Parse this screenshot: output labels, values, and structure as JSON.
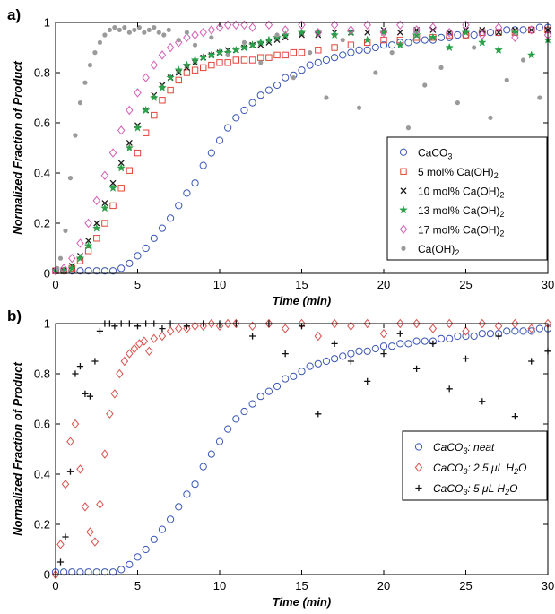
{
  "chart_data": [
    {
      "type": "scatter",
      "panel_label": "a)",
      "xlabel": "Time (min)",
      "ylabel": "Normalized Fraction of Product",
      "xlim": [
        0,
        30
      ],
      "ylim": [
        0,
        1
      ],
      "xticks": [
        "0",
        "5",
        "10",
        "15",
        "20",
        "25",
        "30"
      ],
      "yticks": [
        "0",
        "0.2",
        "0.4",
        "0.6",
        "0.8",
        "1"
      ],
      "grid": false,
      "legend_position": "right",
      "series": [
        {
          "name_parts": [
            "CaCO",
            "3"
          ],
          "marker": "circle-open",
          "color": "#3a55b4",
          "x": [
            0.0,
            0.5,
            1.0,
            1.5,
            2.0,
            2.5,
            3.0,
            3.5,
            4.0,
            4.5,
            5.0,
            5.5,
            6.0,
            6.5,
            7.0,
            7.5,
            8.0,
            8.5,
            9.0,
            9.5,
            10.0,
            10.5,
            11.0,
            11.5,
            12.0,
            12.5,
            13.0,
            13.5,
            14.0,
            14.5,
            15.0,
            15.5,
            16.0,
            16.5,
            17.0,
            17.5,
            18.0,
            18.5,
            19.0,
            19.5,
            20.0,
            20.5,
            21.0,
            21.5,
            22.0,
            22.5,
            23.0,
            23.5,
            24.0,
            24.5,
            25.0,
            25.5,
            26.0,
            26.5,
            27.0,
            27.5,
            28.0,
            28.5,
            29.0,
            29.5,
            30.0
          ],
          "y": [
            0.01,
            0.01,
            0.01,
            0.01,
            0.01,
            0.01,
            0.01,
            0.01,
            0.02,
            0.04,
            0.07,
            0.1,
            0.14,
            0.18,
            0.22,
            0.27,
            0.32,
            0.36,
            0.43,
            0.48,
            0.53,
            0.58,
            0.62,
            0.65,
            0.68,
            0.71,
            0.73,
            0.75,
            0.78,
            0.79,
            0.81,
            0.83,
            0.84,
            0.85,
            0.86,
            0.87,
            0.88,
            0.89,
            0.89,
            0.9,
            0.91,
            0.91,
            0.92,
            0.92,
            0.93,
            0.93,
            0.93,
            0.94,
            0.94,
            0.95,
            0.95,
            0.95,
            0.96,
            0.96,
            0.96,
            0.97,
            0.97,
            0.97,
            0.97,
            0.98,
            0.98
          ]
        },
        {
          "name_parts": [
            "5 mol% Ca(OH)",
            "2"
          ],
          "marker": "square-open",
          "color": "#e0453a",
          "x": [
            0.0,
            0.5,
            1.0,
            1.5,
            2.0,
            2.5,
            3.0,
            3.5,
            4.0,
            4.5,
            5.0,
            5.5,
            6.0,
            6.5,
            7.0,
            7.5,
            8.0,
            8.5,
            9.0,
            9.5,
            10.0,
            10.5,
            11.0,
            11.5,
            12.0,
            12.5,
            13.0,
            13.5,
            14.0,
            14.5,
            15.0,
            16.0,
            17.0,
            18.0,
            19.0,
            20.0,
            21.0,
            22.0,
            23.0,
            24.0,
            25.0,
            26.0,
            27.0,
            28.0,
            29.0,
            30.0
          ],
          "y": [
            0.01,
            0.01,
            0.02,
            0.05,
            0.09,
            0.14,
            0.2,
            0.27,
            0.34,
            0.41,
            0.48,
            0.56,
            0.63,
            0.69,
            0.73,
            0.77,
            0.8,
            0.81,
            0.82,
            0.83,
            0.84,
            0.84,
            0.85,
            0.85,
            0.85,
            0.86,
            0.86,
            0.87,
            0.87,
            0.88,
            0.88,
            0.89,
            0.9,
            0.91,
            0.92,
            0.93,
            0.93,
            0.94,
            0.94,
            0.95,
            0.95,
            0.96,
            0.96,
            0.96,
            0.97,
            0.97
          ]
        },
        {
          "name_parts": [
            "10 mol% Ca(OH)",
            "2"
          ],
          "marker": "x",
          "color": "#1a1a1a",
          "x": [
            0.0,
            0.5,
            1.0,
            1.5,
            2.0,
            2.5,
            3.0,
            3.5,
            4.0,
            4.5,
            5.0,
            5.5,
            6.0,
            6.5,
            7.0,
            7.5,
            8.0,
            8.5,
            9.0,
            9.5,
            10.0,
            10.5,
            11.0,
            11.5,
            12.0,
            12.5,
            13.0,
            13.5,
            14.0,
            15.0,
            16.0,
            17.0,
            18.0,
            19.0,
            20.0,
            21.0,
            22.0,
            23.0,
            24.0,
            25.0,
            26.0,
            27.0,
            28.0,
            29.0,
            30.0
          ],
          "y": [
            0.01,
            0.01,
            0.03,
            0.07,
            0.13,
            0.2,
            0.28,
            0.36,
            0.44,
            0.52,
            0.59,
            0.65,
            0.71,
            0.75,
            0.78,
            0.8,
            0.82,
            0.84,
            0.86,
            0.87,
            0.88,
            0.89,
            0.89,
            0.9,
            0.91,
            0.91,
            0.92,
            0.93,
            0.94,
            0.95,
            0.95,
            0.96,
            0.96,
            0.96,
            0.97,
            0.96,
            0.97,
            0.97,
            0.96,
            0.97,
            0.97,
            0.96,
            0.97,
            0.97,
            0.97
          ]
        },
        {
          "name_parts": [
            "13 mol% Ca(OH)",
            "2"
          ],
          "marker": "star",
          "color": "#2ca04a",
          "x": [
            0.0,
            0.5,
            1.0,
            1.5,
            2.0,
            2.5,
            3.0,
            3.5,
            4.0,
            4.5,
            5.0,
            5.5,
            6.0,
            6.5,
            7.0,
            7.5,
            8.0,
            8.5,
            9.0,
            9.5,
            10.0,
            10.5,
            11.0,
            11.5,
            12.0,
            12.5,
            13.0,
            13.5,
            14.0,
            15.0,
            16.0,
            17.0,
            18.0,
            19.0,
            20.0,
            21.0,
            22.0,
            23.0,
            24.0,
            25.0,
            26.0,
            27.0,
            28.0,
            29.0,
            30.0
          ],
          "y": [
            0.01,
            0.01,
            0.02,
            0.06,
            0.11,
            0.18,
            0.26,
            0.34,
            0.42,
            0.5,
            0.58,
            0.65,
            0.7,
            0.74,
            0.78,
            0.81,
            0.83,
            0.85,
            0.86,
            0.87,
            0.88,
            0.88,
            0.89,
            0.9,
            0.91,
            0.92,
            0.93,
            0.94,
            0.95,
            0.96,
            0.96,
            0.95,
            0.96,
            0.93,
            0.96,
            0.91,
            0.95,
            0.94,
            0.9,
            0.96,
            0.92,
            0.89,
            0.96,
            0.87,
            0.93
          ]
        },
        {
          "name_parts": [
            "17 mol% Ca(OH)",
            "2"
          ],
          "marker": "diamond-open",
          "color": "#d45fb4",
          "x": [
            0.0,
            0.5,
            1.0,
            1.5,
            2.0,
            2.5,
            3.0,
            3.5,
            4.0,
            4.5,
            5.0,
            5.5,
            6.0,
            6.5,
            7.0,
            7.5,
            8.0,
            8.5,
            9.0,
            9.5,
            10.0,
            10.5,
            11.0,
            11.5,
            12.0,
            13.0,
            14.0,
            15.0,
            16.0,
            17.0,
            18.0,
            19.0,
            20.0,
            21.0,
            22.0,
            23.0,
            24.0,
            25.0,
            26.0,
            27.0,
            28.0,
            29.0,
            30.0
          ],
          "y": [
            0.01,
            0.02,
            0.06,
            0.12,
            0.2,
            0.29,
            0.39,
            0.48,
            0.57,
            0.65,
            0.72,
            0.78,
            0.83,
            0.87,
            0.9,
            0.92,
            0.94,
            0.95,
            0.96,
            0.97,
            0.98,
            0.99,
            0.99,
            0.99,
            0.98,
            0.99,
            0.97,
            0.99,
            0.96,
            0.99,
            0.97,
            0.99,
            0.96,
            0.99,
            0.97,
            0.98,
            0.96,
            0.99,
            0.95,
            0.98,
            0.94,
            0.97,
            0.95
          ]
        },
        {
          "name_parts": [
            "Ca(OH)",
            "2"
          ],
          "marker": "dot",
          "color": "#9a9a9a",
          "x": [
            0.1,
            0.3,
            0.6,
            0.9,
            1.2,
            1.5,
            1.8,
            2.1,
            2.4,
            2.7,
            3.0,
            3.3,
            3.6,
            3.9,
            4.2,
            4.5,
            4.8,
            5.1,
            5.4,
            5.7,
            6.0,
            6.3,
            6.6,
            6.9,
            7.5,
            8.0,
            8.5,
            9.5,
            10.5,
            11.5,
            12.5,
            13.5,
            14.5,
            15.5,
            16.5,
            17.5,
            18.5,
            19.5,
            20.5,
            21.5,
            22.5,
            23.5,
            24.5,
            25.5,
            26.5,
            27.5,
            28.5,
            29.5
          ],
          "y": [
            0.02,
            0.06,
            0.17,
            0.38,
            0.55,
            0.68,
            0.76,
            0.83,
            0.88,
            0.92,
            0.95,
            0.97,
            0.98,
            0.97,
            0.98,
            0.96,
            0.97,
            0.98,
            0.96,
            0.97,
            0.98,
            0.96,
            0.95,
            0.97,
            0.93,
            0.96,
            0.91,
            0.94,
            0.87,
            0.92,
            0.84,
            0.95,
            0.78,
            0.88,
            0.7,
            0.93,
            0.66,
            0.8,
            0.88,
            0.58,
            0.75,
            0.82,
            0.68,
            0.9,
            0.62,
            0.77,
            0.85,
            0.7
          ]
        }
      ]
    },
    {
      "type": "scatter",
      "panel_label": "b)",
      "xlabel": "Time (min)",
      "ylabel": "Normalized Fraction of Product",
      "xlim": [
        0,
        30
      ],
      "ylim": [
        0,
        1
      ],
      "xticks": [
        "0",
        "5",
        "10",
        "15",
        "20",
        "25",
        "30"
      ],
      "yticks": [
        "0",
        "0.2",
        "0.4",
        "0.6",
        "0.8",
        "1"
      ],
      "grid": false,
      "legend_position": "lower-right",
      "series": [
        {
          "name_parts": [
            "CaCO",
            "3",
            ": ",
            "neat",
            ""
          ],
          "marker": "circle-open",
          "color": "#3a55b4",
          "x": [
            0.0,
            0.5,
            1.0,
            1.5,
            2.0,
            2.5,
            3.0,
            3.5,
            4.0,
            4.5,
            5.0,
            5.5,
            6.0,
            6.5,
            7.0,
            7.5,
            8.0,
            8.5,
            9.0,
            9.5,
            10.0,
            10.5,
            11.0,
            11.5,
            12.0,
            12.5,
            13.0,
            13.5,
            14.0,
            14.5,
            15.0,
            15.5,
            16.0,
            16.5,
            17.0,
            17.5,
            18.0,
            18.5,
            19.0,
            19.5,
            20.0,
            20.5,
            21.0,
            21.5,
            22.0,
            22.5,
            23.0,
            23.5,
            24.0,
            24.5,
            25.0,
            25.5,
            26.0,
            26.5,
            27.0,
            27.5,
            28.0,
            28.5,
            29.0,
            29.5,
            30.0
          ],
          "y": [
            0.01,
            0.01,
            0.01,
            0.01,
            0.01,
            0.01,
            0.01,
            0.01,
            0.02,
            0.04,
            0.07,
            0.1,
            0.14,
            0.18,
            0.22,
            0.27,
            0.32,
            0.36,
            0.43,
            0.48,
            0.53,
            0.58,
            0.62,
            0.65,
            0.68,
            0.71,
            0.73,
            0.75,
            0.78,
            0.79,
            0.81,
            0.83,
            0.84,
            0.85,
            0.86,
            0.87,
            0.88,
            0.89,
            0.89,
            0.9,
            0.91,
            0.91,
            0.92,
            0.92,
            0.93,
            0.93,
            0.93,
            0.94,
            0.94,
            0.95,
            0.95,
            0.95,
            0.96,
            0.96,
            0.96,
            0.97,
            0.97,
            0.97,
            0.97,
            0.98,
            0.98
          ]
        },
        {
          "name_parts": [
            "CaCO",
            "3",
            ": 2.5 ",
            "μL H",
            "2",
            "O"
          ],
          "marker": "diamond-open",
          "color": "#d9534f",
          "x": [
            0.0,
            0.3,
            0.6,
            0.9,
            1.2,
            1.5,
            1.8,
            2.1,
            2.4,
            2.7,
            3.0,
            3.3,
            3.6,
            3.9,
            4.2,
            4.5,
            4.8,
            5.1,
            5.4,
            5.7,
            6.0,
            6.5,
            7.0,
            7.5,
            8.0,
            8.5,
            9.0,
            9.5,
            10.0,
            10.5,
            11.0,
            12.0,
            13.0,
            14.0,
            15.0,
            16.0,
            17.0,
            18.0,
            19.0,
            20.0,
            21.0,
            22.0,
            23.0,
            24.0,
            25.0,
            26.0,
            27.0,
            28.0,
            29.0,
            30.0
          ],
          "y": [
            0.0,
            0.12,
            0.36,
            0.53,
            0.6,
            0.42,
            0.27,
            0.17,
            0.13,
            0.28,
            0.48,
            0.64,
            0.72,
            0.8,
            0.85,
            0.88,
            0.9,
            0.92,
            0.93,
            0.89,
            0.94,
            0.95,
            0.97,
            0.98,
            0.98,
            0.99,
            0.99,
            1.0,
            0.99,
            1.0,
            1.0,
            0.99,
            1.0,
            0.98,
            1.0,
            0.95,
            1.0,
            0.99,
            1.0,
            0.96,
            1.0,
            1.0,
            0.98,
            1.0,
            0.97,
            1.0,
            0.99,
            1.0,
            0.98,
            1.0
          ]
        },
        {
          "name_parts": [
            "CaCO",
            "3",
            ": 5 ",
            "μL H",
            "2",
            "O"
          ],
          "marker": "plus",
          "color": "#111111",
          "x": [
            0.0,
            0.3,
            0.6,
            0.9,
            1.2,
            1.5,
            1.8,
            2.1,
            2.4,
            2.7,
            3.0,
            3.3,
            3.6,
            4.0,
            4.5,
            5.0,
            5.5,
            6.0,
            6.5,
            7.0,
            8.0,
            9.0,
            10.0,
            11.0,
            12.0,
            13.0,
            14.0,
            15.0,
            16.0,
            17.0,
            18.0,
            19.0,
            20.0,
            21.0,
            22.0,
            23.0,
            24.0,
            25.0,
            26.0,
            27.0,
            28.0,
            29.0,
            30.0
          ],
          "y": [
            0.0,
            0.05,
            0.15,
            0.41,
            0.8,
            0.83,
            0.72,
            0.71,
            0.85,
            0.97,
            1.0,
            1.0,
            0.99,
            1.0,
            1.0,
            0.99,
            1.0,
            1.0,
            0.98,
            1.0,
            0.99,
            1.0,
            1.0,
            1.0,
            0.95,
            1.0,
            0.88,
            0.99,
            0.64,
            0.92,
            0.85,
            0.77,
            0.88,
            0.96,
            0.82,
            0.92,
            0.74,
            0.86,
            0.69,
            0.95,
            0.63,
            0.85,
            0.89
          ]
        }
      ]
    }
  ]
}
